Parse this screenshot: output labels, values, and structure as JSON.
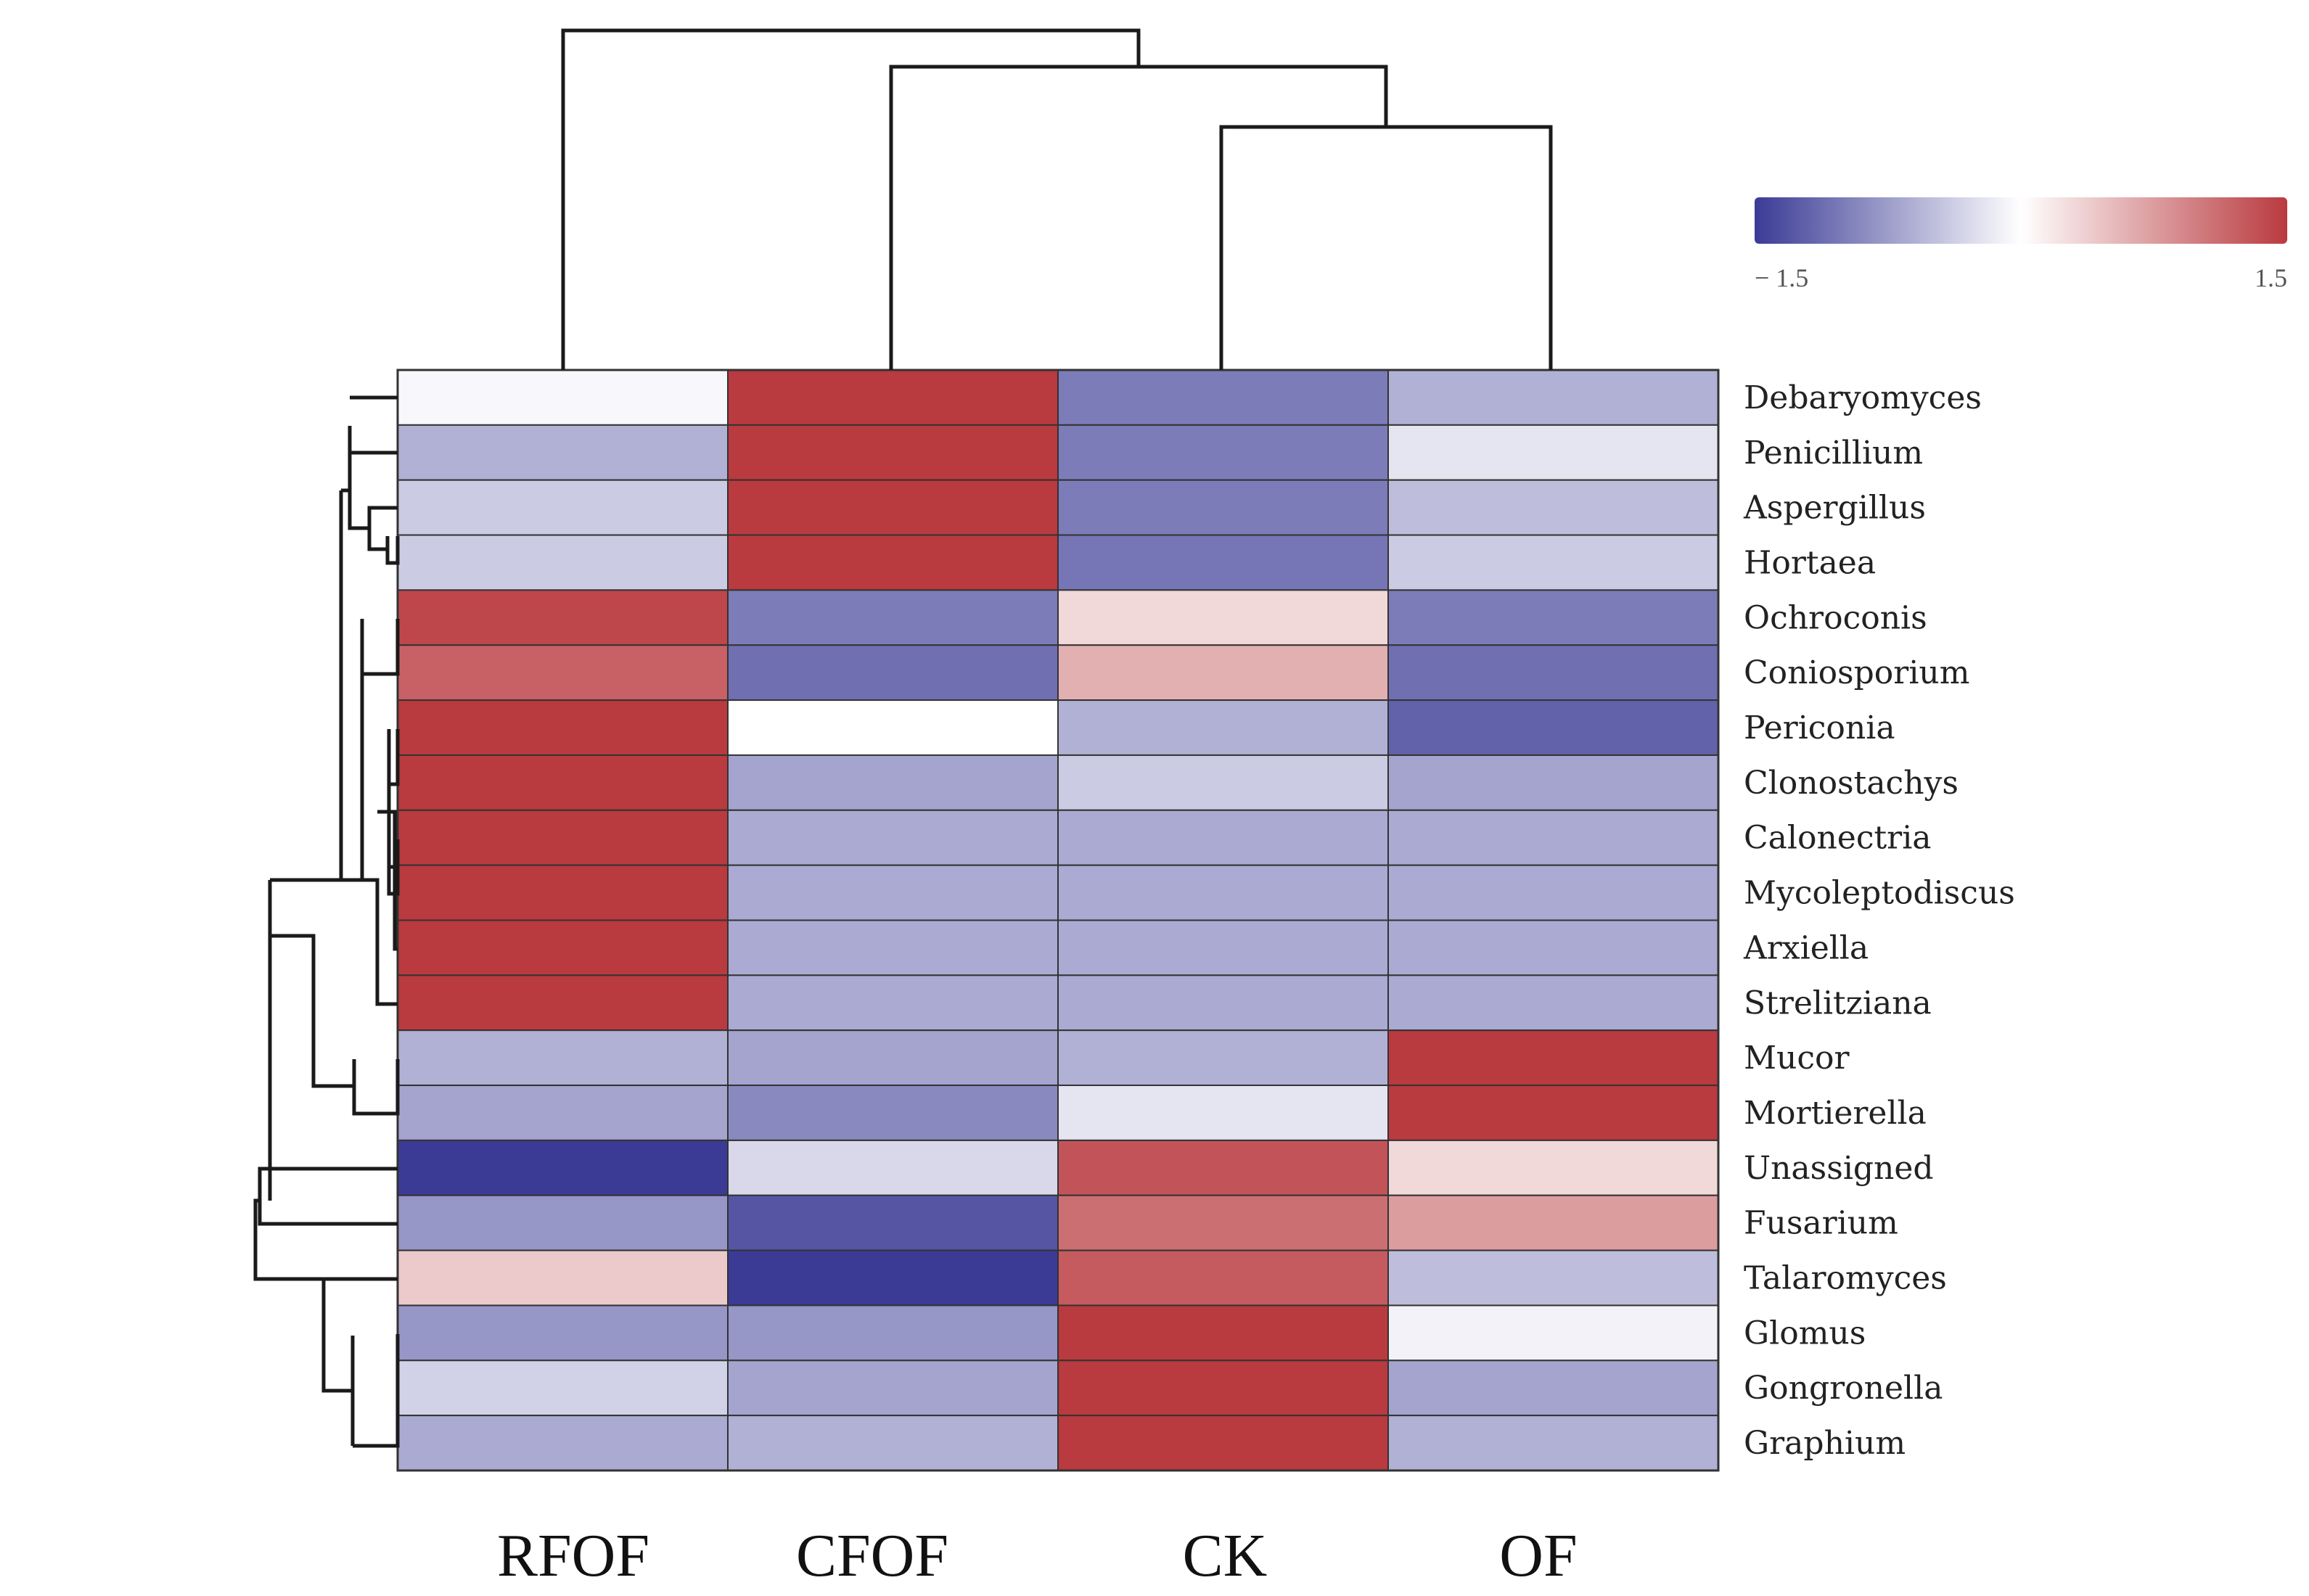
{
  "chart_data": {
    "type": "heatmap",
    "title": "",
    "columns": [
      "RFOF",
      "CFOF",
      "CK",
      "OF"
    ],
    "rows": [
      "Debaryomyces",
      "Penicillium",
      "Aspergillus",
      "Hortaea",
      "Ochroconis",
      "Coniosporium",
      "Periconia",
      "Clonostachys",
      "Calonectria",
      "Mycoleptodiscus",
      "Arxiella",
      "Strelitziana",
      "Mucor",
      "Mortierella",
      "Unassigned",
      "Fusarium",
      "Talaromyces",
      "Glomus",
      "Gongronella",
      "Graphium"
    ],
    "values": [
      [
        -0.05,
        1.5,
        -1.0,
        -0.6
      ],
      [
        -0.6,
        1.5,
        -1.0,
        -0.2
      ],
      [
        -0.4,
        1.5,
        -1.0,
        -0.5
      ],
      [
        -0.4,
        1.5,
        -1.05,
        -0.4
      ],
      [
        1.4,
        -1.0,
        0.3,
        -1.0
      ],
      [
        1.2,
        -1.1,
        0.6,
        -1.1
      ],
      [
        1.5,
        0.0,
        -0.6,
        -1.2
      ],
      [
        1.5,
        -0.7,
        -0.4,
        -0.7
      ],
      [
        1.5,
        -0.65,
        -0.65,
        -0.65
      ],
      [
        1.5,
        -0.65,
        -0.65,
        -0.65
      ],
      [
        1.5,
        -0.65,
        -0.65,
        -0.65
      ],
      [
        1.5,
        -0.65,
        -0.65,
        -0.65
      ],
      [
        -0.6,
        -0.7,
        -0.6,
        1.5
      ],
      [
        -0.7,
        -0.9,
        -0.2,
        1.5
      ],
      [
        -1.5,
        -0.3,
        1.3,
        0.3
      ],
      [
        -0.8,
        -1.3,
        1.1,
        0.75
      ],
      [
        0.4,
        -1.5,
        1.25,
        -0.5
      ],
      [
        -0.8,
        -0.8,
        1.5,
        -0.1
      ],
      [
        -0.35,
        -0.7,
        1.5,
        -0.7
      ],
      [
        -0.65,
        -0.6,
        1.5,
        -0.6
      ]
    ],
    "colorbar": {
      "min": -1.5,
      "max": 1.5,
      "min_label": "− 1.5",
      "max_label": "1.5",
      "low_color": "#3b3b96",
      "mid_color": "#ffffff",
      "high_color": "#b93a3f"
    },
    "row_dendrogram": true,
    "column_dendrogram": true,
    "legend_position": "top-right"
  }
}
